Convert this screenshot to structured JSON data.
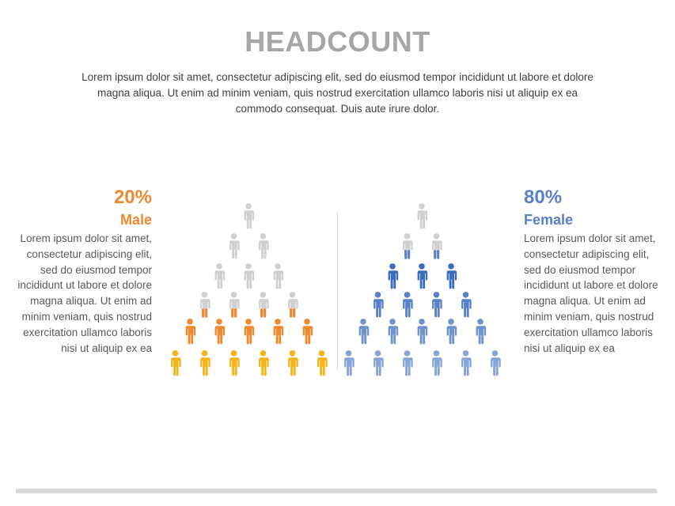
{
  "title": "HEADCOUNT",
  "intro": "Lorem ipsum dolor sit amet, consectetur adipiscing elit, sed do eiusmod tempor incididunt ut labore et dolore magna aliqua. Ut enim ad minim veniam, quis nostrud exercitation ullamco laboris nisi ut aliquip ex ea commodo consequat. Duis aute irure dolor.",
  "male": {
    "percent": "20%",
    "label": "Male",
    "description": "Lorem ipsum dolor sit amet, consectetur adipiscing elit, sed do eiusmod tempor incididunt ut labore et dolore magna aliqua. Ut enim ad minim veniam, quis nostrud exercitation ullamco laboris nisi ut aliquip ex ea",
    "filled_fraction": 0.2
  },
  "female": {
    "percent": "80%",
    "label": "Female",
    "description": "Lorem ipsum dolor sit amet, consectetur adipiscing elit, sed do eiusmod tempor incididunt ut labore et dolore magna aliqua. Ut enim ad minim veniam, quis nostrud exercitation ullamco laboris nisi ut aliquip ex ea",
    "filled_fraction": 0.8
  },
  "colors": {
    "title": "#a6a6a6",
    "male_accent": "#f0892d",
    "female_accent": "#5a81c5",
    "inactive": "#d0d0d0",
    "male_rows": [
      "#d0d0d0",
      "#d0d0d0",
      "#d0d0d0",
      "#d0d0d0",
      "#f0892d",
      "#f5b419"
    ],
    "female_rows": [
      "#d0d0d0",
      "#d0d0d0",
      "#3c6bbf",
      "#5a81c5",
      "#6f93cf",
      "#86a4d6"
    ]
  },
  "icons": {
    "person": "person-icon"
  }
}
